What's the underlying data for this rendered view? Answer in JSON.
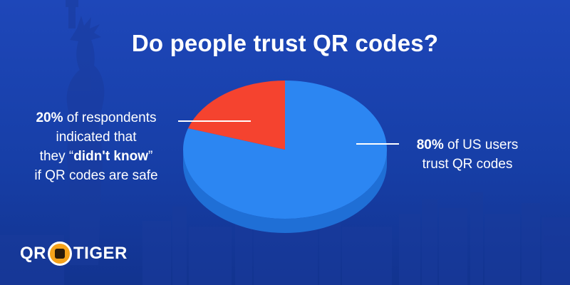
{
  "title": "Do people trust QR codes?",
  "colors": {
    "trust": "#2c86f2",
    "trust_side": "#1f6fd6",
    "dont_know": "#f5432f",
    "dont_know_side": "#c8321f",
    "callout_line": "#ffffff"
  },
  "callouts": {
    "left": {
      "pct": "20%",
      "line1_rest": " of respondents",
      "line2": "indicated that",
      "line3_pre": "they “",
      "line3_bold": "didn't know",
      "line3_post": "”",
      "line4": "if QR codes are safe"
    },
    "right": {
      "pct": "80%",
      "line1_rest": " of US users",
      "line2": "trust QR codes"
    }
  },
  "logo": {
    "left": "QR",
    "right": "TIGER",
    "icon": "tiger-face-icon"
  },
  "chart_data": {
    "type": "pie",
    "title": "Do people trust QR codes?",
    "categories": [
      "of US users trust QR codes",
      "of respondents indicated that they “didn't know” if QR codes are safe"
    ],
    "values": [
      80,
      20
    ],
    "slice_colors": [
      "#2c86f2",
      "#f5432f"
    ],
    "start_angle_deg": 0,
    "direction": "counter-clockwise from 12 o'clock for the 20% slice",
    "3d": true
  }
}
